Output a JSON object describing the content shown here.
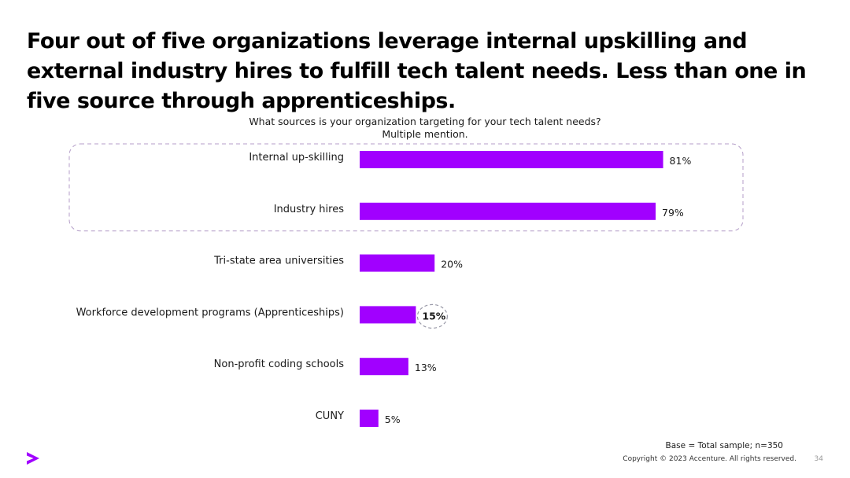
{
  "slide": {
    "headline": "Four out of five organizations leverage internal upskilling and external industry hires to fulfill tech talent needs. Less than one in five source through apprenticeships.",
    "question_line1": "What sources is your organization targeting for your tech talent needs?",
    "question_line2": "Multiple mention.",
    "base_note": "Base = Total sample; n=350",
    "copyright": "Copyright © 2023 Accenture. All rights reserved.",
    "page_number": "34"
  },
  "logo": {
    "icon": "accenture-greater-than-icon",
    "color": "#A100FF"
  },
  "colors": {
    "bar": "#A100FF",
    "highlight_outline": "#9a9aa8",
    "group_outline": "#b49ec8"
  },
  "chart_data": {
    "type": "bar",
    "orientation": "horizontal",
    "categories": [
      "Internal up-skilling",
      "Industry hires",
      "Tri-state area universities",
      "Workforce development programs (Apprenticeships)",
      "Non-profit coding schools",
      "CUNY"
    ],
    "values": [
      81,
      79,
      20,
      15,
      13,
      5
    ],
    "value_labels": [
      "81%",
      "79%",
      "20%",
      "15%",
      "13%",
      "5%"
    ],
    "unit": "%",
    "xlim": [
      0,
      100
    ],
    "grid": false,
    "highlighted_groups": [
      [
        0,
        1
      ]
    ],
    "highlighted_values": [
      3
    ]
  }
}
